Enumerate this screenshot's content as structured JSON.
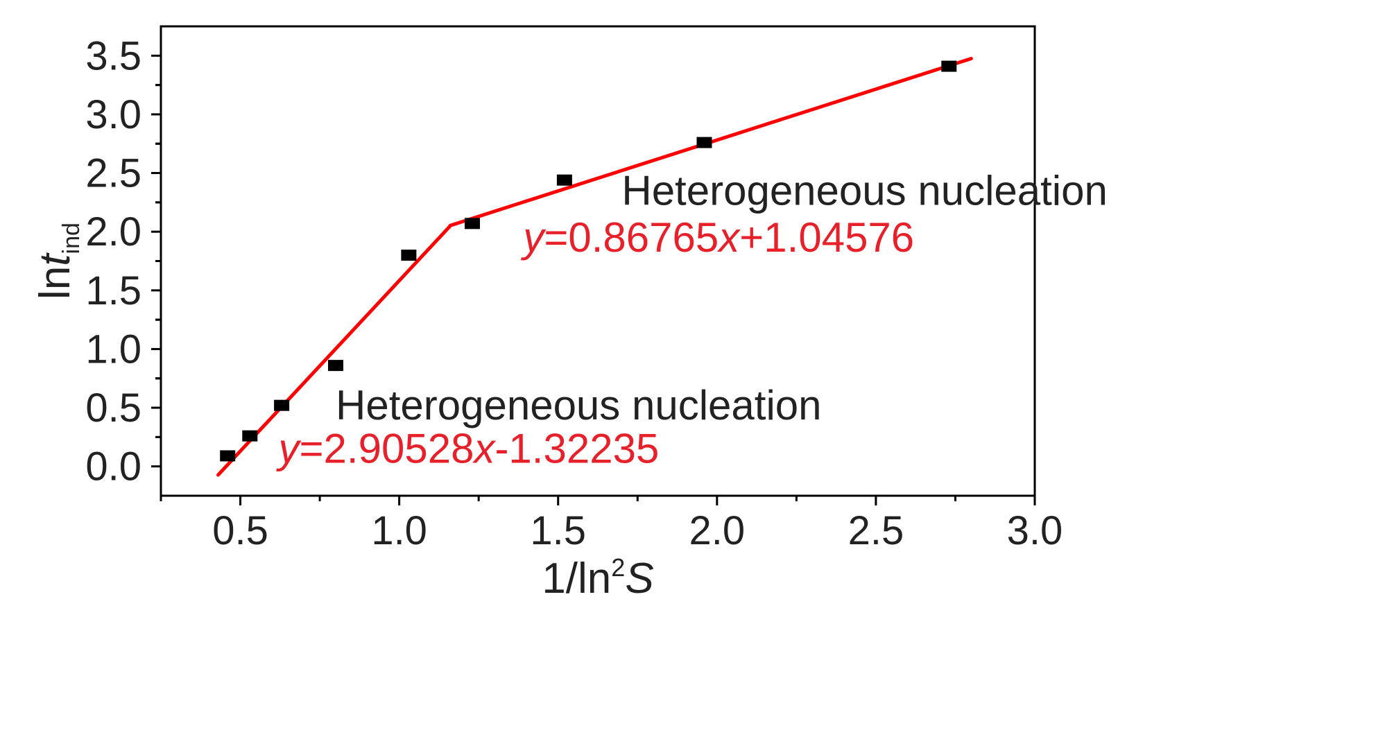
{
  "chart_data": {
    "type": "scatter",
    "xlabel": {
      "main": "1/ln",
      "sup": "2",
      "var": "S"
    },
    "ylabel": {
      "main": "ln",
      "var": "t",
      "sub": "ind"
    },
    "xlim": [
      0.25,
      3.0
    ],
    "ylim": [
      -0.25,
      3.75
    ],
    "x_major_ticks": [
      0.5,
      1.0,
      1.5,
      2.0,
      2.5,
      3.0
    ],
    "x_tick_labels": [
      "0.5",
      "1.0",
      "1.5",
      "2.0",
      "2.5",
      "3.0"
    ],
    "y_major_ticks": [
      0.0,
      0.5,
      1.0,
      1.5,
      2.0,
      2.5,
      3.0,
      3.5
    ],
    "y_tick_labels": [
      "0.0",
      "0.5",
      "1.0",
      "1.5",
      "2.0",
      "2.5",
      "3.0",
      "3.5"
    ],
    "grid": false,
    "points": {
      "x": [
        0.46,
        0.53,
        0.63,
        0.8,
        1.03,
        1.23,
        1.52,
        1.96,
        2.73
      ],
      "y": [
        0.09,
        0.26,
        0.52,
        0.86,
        1.8,
        2.07,
        2.44,
        2.76,
        3.41
      ],
      "color": "#000000"
    },
    "fits": [
      {
        "slope": 2.90528,
        "intercept": -1.32235,
        "x_range": [
          0.43,
          1.16
        ],
        "color": "#ff0000"
      },
      {
        "slope": 0.86765,
        "intercept": 1.04576,
        "x_range": [
          1.16,
          2.8
        ],
        "color": "#ff0000"
      }
    ],
    "annotations": [
      {
        "label": "Heterogeneous nucleation",
        "equation": {
          "y": "y",
          "eq1": "=2.90528",
          "x": "x",
          "eq2": "-1.32235"
        },
        "position": "lower-left"
      },
      {
        "label": "Heterogeneous nucleation",
        "equation": {
          "y": "y",
          "eq1": "=0.86765",
          "x": "x",
          "eq2": "+1.04576"
        },
        "position": "upper-right"
      }
    ]
  }
}
